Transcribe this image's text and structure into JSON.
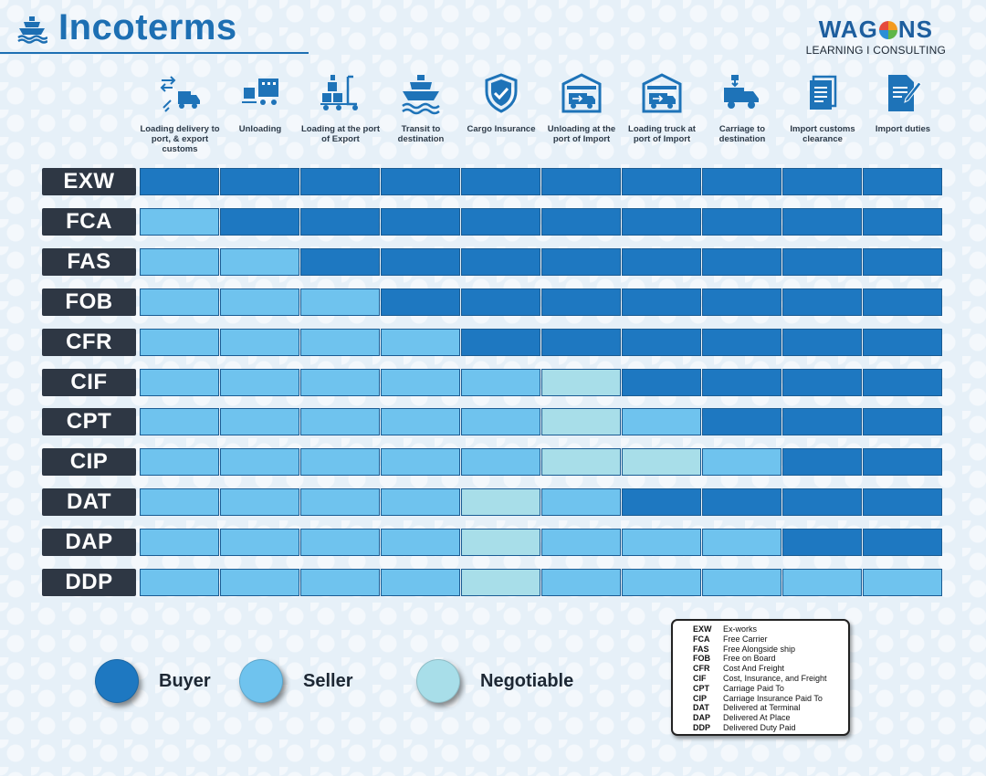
{
  "title": "Incoterms",
  "logo": {
    "brand": "WAGONS",
    "brand_pre": "WAG",
    "brand_post": "NS",
    "tagline": "LEARNING I CONSULTING"
  },
  "columns": [
    {
      "icon": "truck-loading-icon",
      "label": "Loading delivery to port, & export customs"
    },
    {
      "icon": "unloading-icon",
      "label": "Unloading"
    },
    {
      "icon": "forklift-icon",
      "label": "Loading at the port of Export"
    },
    {
      "icon": "ship-icon",
      "label": "Transit to destination"
    },
    {
      "icon": "shield-check-icon",
      "label": "Cargo Insurance"
    },
    {
      "icon": "warehouse-truck-icon",
      "label": "Unloading at the port of Import"
    },
    {
      "icon": "warehouse-truck-icon",
      "label": "Loading truck at port of Import"
    },
    {
      "icon": "delivery-truck-icon",
      "label": "Carriage to destination"
    },
    {
      "icon": "documents-icon",
      "label": "Import customs clearance"
    },
    {
      "icon": "document-sign-icon",
      "label": "Import duties"
    }
  ],
  "rows": [
    {
      "term": "EXW",
      "cells": [
        "B",
        "B",
        "B",
        "B",
        "B",
        "B",
        "B",
        "B",
        "B",
        "B"
      ]
    },
    {
      "term": "FCA",
      "cells": [
        "S",
        "B",
        "B",
        "B",
        "B",
        "B",
        "B",
        "B",
        "B",
        "B"
      ]
    },
    {
      "term": "FAS",
      "cells": [
        "S",
        "S",
        "B",
        "B",
        "B",
        "B",
        "B",
        "B",
        "B",
        "B"
      ]
    },
    {
      "term": "FOB",
      "cells": [
        "S",
        "S",
        "S",
        "B",
        "B",
        "B",
        "B",
        "B",
        "B",
        "B"
      ]
    },
    {
      "term": "CFR",
      "cells": [
        "S",
        "S",
        "S",
        "S",
        "B",
        "B",
        "B",
        "B",
        "B",
        "B"
      ]
    },
    {
      "term": "CIF",
      "cells": [
        "S",
        "S",
        "S",
        "S",
        "S",
        "N",
        "B",
        "B",
        "B",
        "B"
      ]
    },
    {
      "term": "CPT",
      "cells": [
        "S",
        "S",
        "S",
        "S",
        "S",
        "N",
        "S",
        "B",
        "B",
        "B"
      ]
    },
    {
      "term": "CIP",
      "cells": [
        "S",
        "S",
        "S",
        "S",
        "S",
        "N",
        "N",
        "S",
        "B",
        "B"
      ]
    },
    {
      "term": "DAT",
      "cells": [
        "S",
        "S",
        "S",
        "S",
        "N",
        "S",
        "B",
        "B",
        "B",
        "B"
      ]
    },
    {
      "term": "DAP",
      "cells": [
        "S",
        "S",
        "S",
        "S",
        "N",
        "S",
        "S",
        "S",
        "B",
        "B"
      ]
    },
    {
      "term": "DDP",
      "cells": [
        "S",
        "S",
        "S",
        "S",
        "N",
        "S",
        "S",
        "S",
        "S",
        "S"
      ]
    }
  ],
  "legend": [
    {
      "code": "B",
      "label": "Buyer",
      "color": "#1e78c1"
    },
    {
      "code": "S",
      "label": "Seller",
      "color": "#6fc3ee"
    },
    {
      "code": "N",
      "label": "Negotiable",
      "color": "#a8dee9"
    }
  ],
  "glossary": [
    {
      "abbr": "EXW",
      "meaning": "Ex-works"
    },
    {
      "abbr": "FCA",
      "meaning": "Free Carrier"
    },
    {
      "abbr": "FAS",
      "meaning": "Free Alongside ship"
    },
    {
      "abbr": "FOB",
      "meaning": "Free on Board"
    },
    {
      "abbr": "CFR",
      "meaning": "Cost And Freight"
    },
    {
      "abbr": "CIF",
      "meaning": "Cost, Insurance, and Freight"
    },
    {
      "abbr": "CPT",
      "meaning": "Carriage Paid To"
    },
    {
      "abbr": "CIP",
      "meaning": "Carriage Insurance Paid To"
    },
    {
      "abbr": "DAT",
      "meaning": "Delivered at Terminal"
    },
    {
      "abbr": "DAP",
      "meaning": "Delivered At Place"
    },
    {
      "abbr": "DDP",
      "meaning": "Delivered Duty Paid"
    }
  ]
}
